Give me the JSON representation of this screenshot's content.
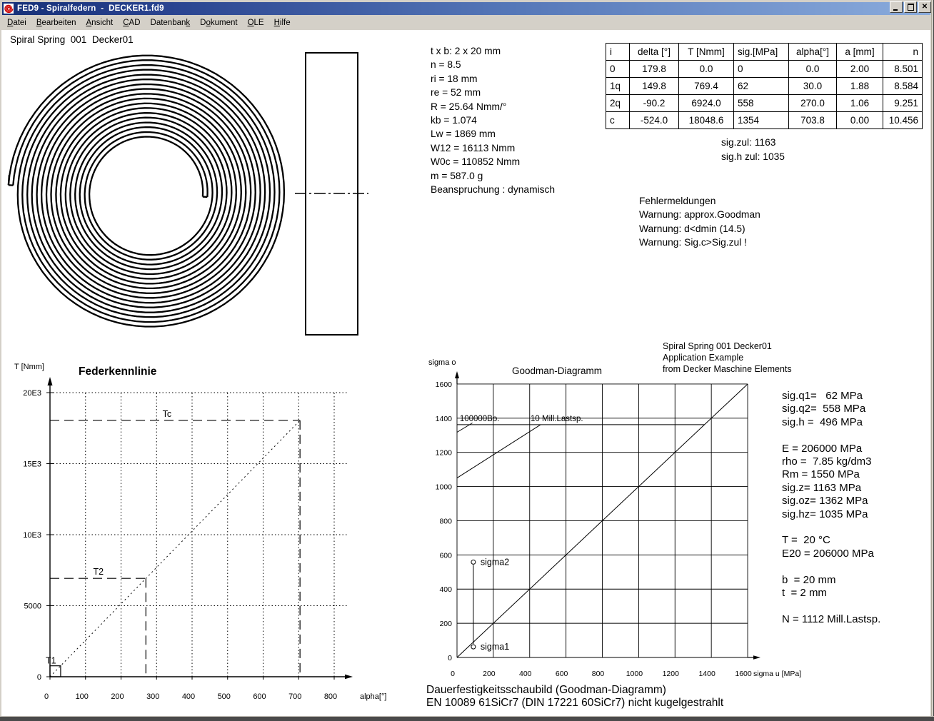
{
  "window": {
    "title": "FED9 - Spiralfedern  -  DECKER1.fd9",
    "controls": {
      "minimize": "_",
      "maximize": "[]",
      "close": "x"
    }
  },
  "menu": {
    "items": [
      {
        "pre": "",
        "u": "D",
        "post": "atei"
      },
      {
        "pre": "",
        "u": "B",
        "post": "earbeiten"
      },
      {
        "pre": "",
        "u": "A",
        "post": "nsicht"
      },
      {
        "pre": "",
        "u": "C",
        "post": "AD"
      },
      {
        "pre": "Datenban",
        "u": "k",
        "post": ""
      },
      {
        "pre": "D",
        "u": "o",
        "post": "kument"
      },
      {
        "pre": "",
        "u": "O",
        "post": "LE"
      },
      {
        "pre": "",
        "u": "H",
        "post": "ilfe"
      }
    ]
  },
  "drawing": {
    "heading": "Spiral Spring  001  Decker01",
    "spiral": {
      "turns": 8.5,
      "ri_mm": 18,
      "re_mm": 52,
      "strip_t_mm": 2,
      "color": "#000000"
    }
  },
  "params": {
    "lines": [
      "t x b: 2 x 20 mm",
      "n = 8.5",
      "ri = 18 mm",
      "re = 52 mm",
      "R = 25.64 Nmm/°",
      "kb = 1.074",
      "Lw = 1869 mm",
      "W12 = 16113 Nmm",
      "W0c = 110852 Nmm",
      "m = 587.0 g",
      "Beanspruchung : dynamisch"
    ]
  },
  "results_table": {
    "headers": [
      "i",
      "delta [°]",
      "T [Nmm]",
      "sig.[MPa]",
      "alpha[°]",
      "a [mm]",
      "n"
    ],
    "rows": [
      [
        "0",
        "179.8",
        "0.0",
        "0",
        "0.0",
        "2.00",
        "8.501"
      ],
      [
        "1q",
        "149.8",
        "769.4",
        "62",
        "30.0",
        "1.88",
        "8.584"
      ],
      [
        "2q",
        "-90.2",
        "6924.0",
        "558",
        "270.0",
        "1.06",
        "9.251"
      ],
      [
        "c",
        "-524.0",
        "18048.6",
        "1354",
        "703.8",
        "0.00",
        "10.456"
      ]
    ]
  },
  "sig_zul": {
    "lines": [
      "sig.zul: 1163",
      "sig.h zul: 1035"
    ]
  },
  "messages": {
    "lines": [
      "Fehlermeldungen",
      "Warnung: approx.Goodman",
      "Warnung: d<dmin (14.5)",
      "Warnung: Sig.c>Sig.zul !"
    ]
  },
  "material_block": {
    "lines": [
      "sig.q1=   62 MPa",
      "sig.q2=  558 MPa",
      "sig.h =  496 MPa",
      "",
      "E = 206000 MPa",
      "rho =  7.85 kg/dm3",
      "Rm = 1550 MPa",
      "sig.z= 1163 MPa",
      "sig.oz= 1362 MPa",
      "sig.hz= 1035 MPa",
      "",
      "T =  20 °C",
      "E20 = 206000 MPa",
      "",
      "b  = 20 mm",
      "t  = 2 mm",
      "",
      "N = 1112 Mill.Lastsp."
    ]
  },
  "caption": {
    "lines": [
      "Dauerfestigkeitsschaubild (Goodman-Diagramm)",
      "EN 10089 61SiCr7 (DIN 17221 60SiCr7) nicht kugelgestrahlt"
    ]
  },
  "chart_data": [
    {
      "type": "line",
      "name": "federkennlinie",
      "title": "Federkennlinie",
      "xlabel": "alpha[°]",
      "ylabel": "T [Nmm]",
      "xlim": [
        0,
        800
      ],
      "ylim": [
        0,
        20000
      ],
      "xticks": [
        0,
        100,
        200,
        300,
        400,
        500,
        600,
        700,
        800
      ],
      "yticks": [
        {
          "value": 0,
          "label": "0"
        },
        {
          "value": 5000,
          "label": "5000"
        },
        {
          "value": 10000,
          "label": "10E3"
        },
        {
          "value": 15000,
          "label": "15E3"
        },
        {
          "value": 20000,
          "label": "20E3"
        }
      ],
      "grid": "dotted",
      "series": [
        {
          "name": "spring-characteristic",
          "style": "dotted",
          "points": [
            [
              0,
              0
            ],
            [
              703.8,
              18048.6
            ]
          ]
        }
      ],
      "markers": [
        {
          "label": "T1",
          "alpha": 30.0,
          "torque": 769.4,
          "style": "box"
        },
        {
          "label": "T2",
          "alpha": 270.0,
          "torque": 6924.0,
          "style": "dashed"
        },
        {
          "label": "Tc",
          "alpha": 703.8,
          "torque": 18048.6,
          "style": "dashed"
        }
      ]
    },
    {
      "type": "line",
      "name": "goodman",
      "title": "Goodman-Diagramm",
      "xlabel": "sigma u [MPa]",
      "ylabel": "sigma o",
      "xlim": [
        0,
        1600
      ],
      "ylim": [
        0,
        1600
      ],
      "tick_step": 200,
      "grid": "solid",
      "corner_text": [
        "Spiral Spring  001  Decker01",
        "Application Example",
        "from Decker Maschine Elements"
      ],
      "lines": [
        {
          "name": "bisector",
          "points": [
            [
              0,
              0
            ],
            [
              1600,
              1600
            ]
          ]
        },
        {
          "name": "goodman-cap-sig-oz",
          "points": [
            [
              0,
              1362
            ],
            [
              1362,
              1362
            ]
          ]
        },
        {
          "name": "goodman-10mill",
          "points": [
            [
              0,
              1050
            ],
            [
              460,
              1362
            ]
          ]
        },
        {
          "name": "goodman-100000",
          "points": [
            [
              0,
              1318
            ],
            [
              85,
              1372
            ]
          ]
        }
      ],
      "line_labels": [
        {
          "text": "100000Bo.",
          "x": 15,
          "y": 1400
        },
        {
          "text": "10 Mill.Lastsp.",
          "x": 405,
          "y": 1400
        }
      ],
      "operating_points": [
        {
          "label": "sigma1",
          "sigma_u": 90,
          "sigma_o": 62
        },
        {
          "label": "sigma2",
          "sigma_u": 90,
          "sigma_o": 558
        }
      ]
    }
  ]
}
